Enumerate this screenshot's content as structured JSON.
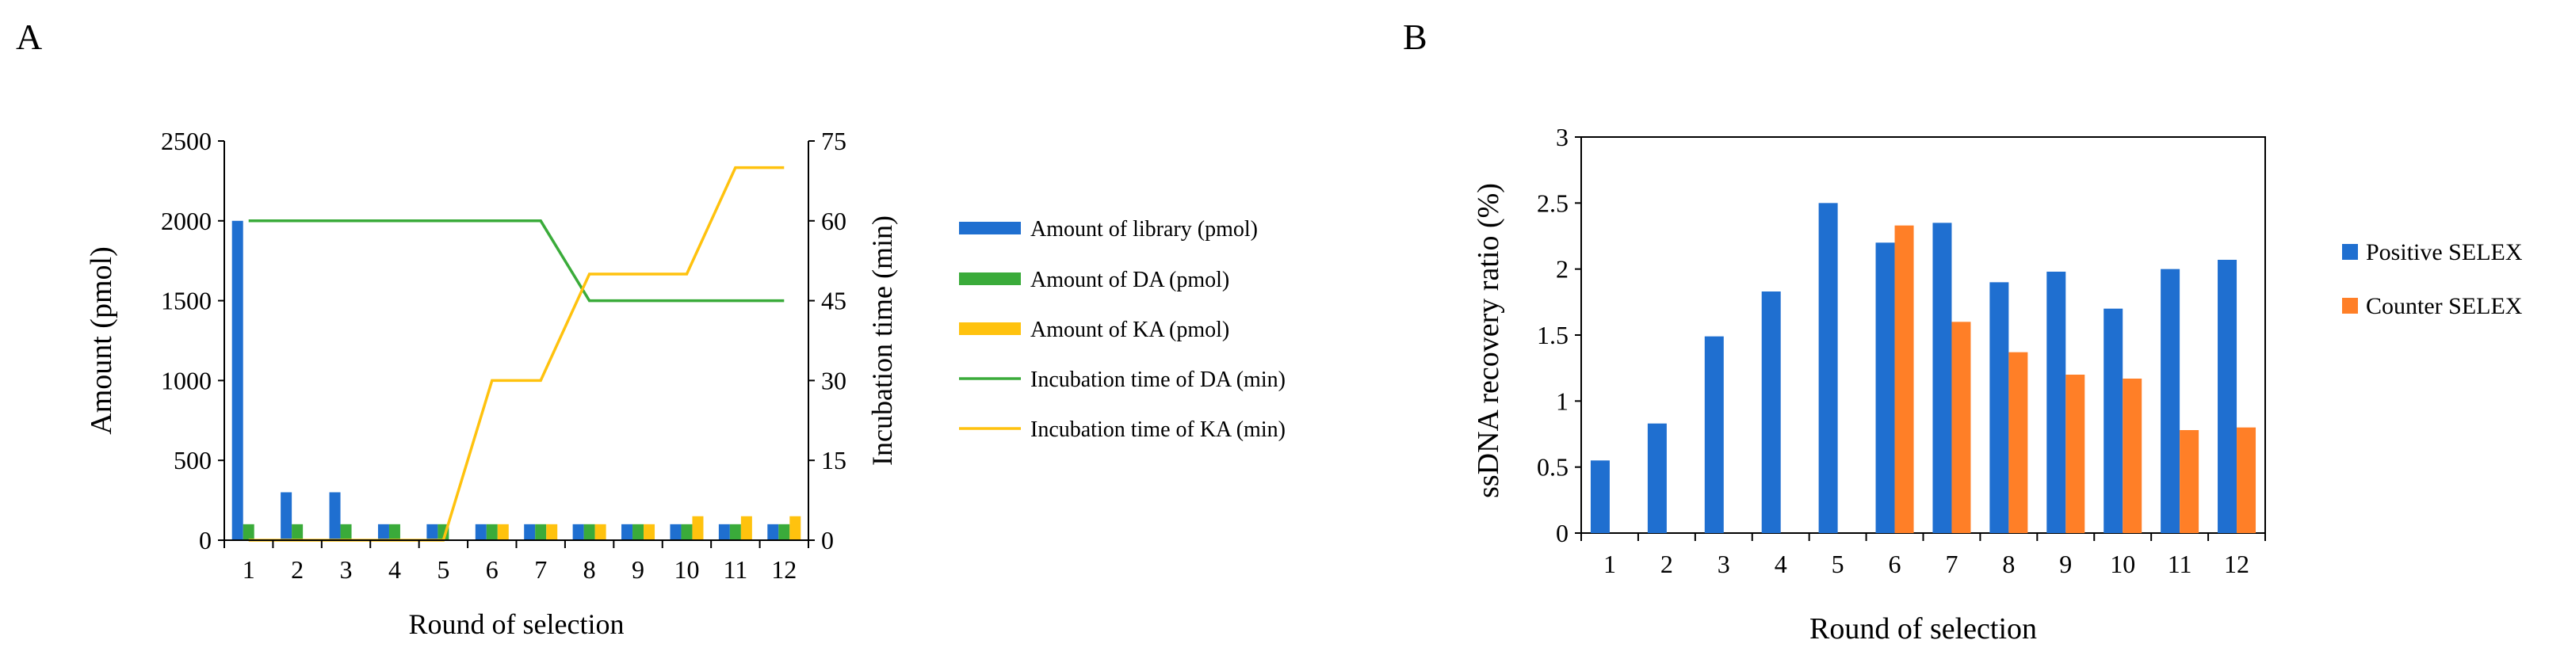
{
  "panels": {
    "a": {
      "label": "A"
    },
    "b": {
      "label": "B"
    }
  },
  "colors": {
    "library": "#1f6fd0",
    "da": "#3aab3a",
    "ka": "#ffc20e",
    "positive": "#1f6fd0",
    "counter": "#ff7f27",
    "axis": "#000000"
  },
  "chart_data": [
    {
      "type": "bar",
      "panel": "A",
      "categories": [
        "1",
        "2",
        "3",
        "4",
        "5",
        "6",
        "7",
        "8",
        "9",
        "10",
        "11",
        "12"
      ],
      "xlabel": "Round of selection",
      "ylabel": "Amount (pmol)",
      "ylim": [
        0,
        2500
      ],
      "yticks": [
        "0",
        "500",
        "1000",
        "1500",
        "2000",
        "2500"
      ],
      "y2label": "Incubation time (min)",
      "y2lim": [
        0,
        75
      ],
      "y2ticks": [
        "0",
        "15",
        "30",
        "45",
        "60",
        "75"
      ],
      "series": [
        {
          "name": "Amount of library (pmol)",
          "kind": "bar",
          "axis": "left",
          "values": [
            2000,
            300,
            300,
            100,
            100,
            100,
            100,
            100,
            100,
            100,
            100,
            100
          ]
        },
        {
          "name": "Amount of DA (pmol)",
          "kind": "bar",
          "axis": "left",
          "values": [
            100,
            100,
            100,
            100,
            100,
            100,
            100,
            100,
            100,
            100,
            100,
            100
          ]
        },
        {
          "name": "Amount of KA (pmol)",
          "kind": "bar",
          "axis": "left",
          "values": [
            0,
            0,
            0,
            0,
            0,
            100,
            100,
            100,
            100,
            150,
            150,
            150
          ]
        },
        {
          "name": "Incubation time of DA (min)",
          "kind": "line",
          "axis": "right",
          "values": [
            60,
            60,
            60,
            60,
            60,
            60,
            60,
            45,
            45,
            45,
            45,
            45
          ]
        },
        {
          "name": "Incubation time of KA (min)",
          "kind": "line",
          "axis": "right",
          "values": [
            0,
            0,
            0,
            0,
            0,
            30,
            30,
            50,
            50,
            50,
            70,
            70
          ]
        }
      ],
      "legend": "right"
    },
    {
      "type": "bar",
      "panel": "B",
      "categories": [
        "1",
        "2",
        "3",
        "4",
        "5",
        "6",
        "7",
        "8",
        "9",
        "10",
        "11",
        "12"
      ],
      "xlabel": "Round of selection",
      "ylabel": "ssDNA recovery ratio (%)",
      "ylim": [
        0,
        3
      ],
      "yticks": [
        "0",
        "0.5",
        "1",
        "1.5",
        "2",
        "2.5",
        "3"
      ],
      "series": [
        {
          "name": "Positive SELEX",
          "values": [
            0.55,
            0.83,
            1.49,
            1.83,
            2.5,
            2.2,
            2.35,
            1.9,
            1.98,
            1.7,
            2.0,
            2.07
          ]
        },
        {
          "name": "Counter SELEX",
          "values": [
            null,
            null,
            null,
            null,
            null,
            2.33,
            1.6,
            1.37,
            1.2,
            1.17,
            0.78,
            0.8
          ]
        }
      ],
      "legend": "right"
    }
  ]
}
